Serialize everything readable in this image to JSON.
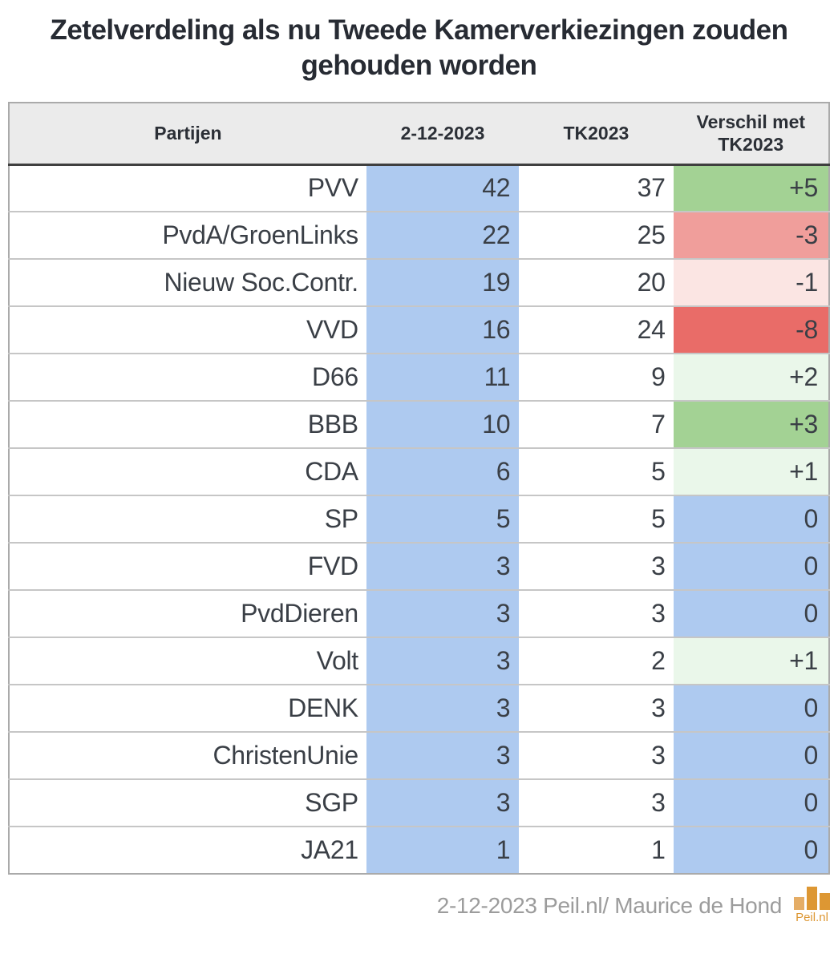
{
  "title": "Zetelverdeling als nu Tweede Kamerverkiezingen zouden gehouden worden",
  "table": {
    "headers": [
      "Partijen",
      "2-12-2023",
      "TK2023",
      "Verschil met TK2023"
    ],
    "rows": [
      {
        "party": "PVV",
        "current": "42",
        "tk2023": "37",
        "diff": "+5",
        "diff_bg": "#a3d294"
      },
      {
        "party": "PvdA/GroenLinks",
        "current": "22",
        "tk2023": "25",
        "diff": "-3",
        "diff_bg": "#f09e9b"
      },
      {
        "party": "Nieuw Soc.Contr.",
        "current": "19",
        "tk2023": "20",
        "diff": "-1",
        "diff_bg": "#fbe5e3"
      },
      {
        "party": "VVD",
        "current": "16",
        "tk2023": "24",
        "diff": "-8",
        "diff_bg": "#e96c68"
      },
      {
        "party": "D66",
        "current": "11",
        "tk2023": "9",
        "diff": "+2",
        "diff_bg": "#eaf7ea"
      },
      {
        "party": "BBB",
        "current": "10",
        "tk2023": "7",
        "diff": "+3",
        "diff_bg": "#a3d294"
      },
      {
        "party": "CDA",
        "current": "6",
        "tk2023": "5",
        "diff": "+1",
        "diff_bg": "#eaf7ea"
      },
      {
        "party": "SP",
        "current": "5",
        "tk2023": "5",
        "diff": "0",
        "diff_bg": "#aecaf0"
      },
      {
        "party": "FVD",
        "current": "3",
        "tk2023": "3",
        "diff": "0",
        "diff_bg": "#aecaf0"
      },
      {
        "party": "PvdDieren",
        "current": "3",
        "tk2023": "3",
        "diff": "0",
        "diff_bg": "#aecaf0"
      },
      {
        "party": "Volt",
        "current": "3",
        "tk2023": "2",
        "diff": "+1",
        "diff_bg": "#eaf7ea"
      },
      {
        "party": "DENK",
        "current": "3",
        "tk2023": "3",
        "diff": "0",
        "diff_bg": "#aecaf0"
      },
      {
        "party": "ChristenUnie",
        "current": "3",
        "tk2023": "3",
        "diff": "0",
        "diff_bg": "#aecaf0"
      },
      {
        "party": "SGP",
        "current": "3",
        "tk2023": "3",
        "diff": "0",
        "diff_bg": "#aecaf0"
      },
      {
        "party": "JA21",
        "current": "1",
        "tk2023": "1",
        "diff": "0",
        "diff_bg": "#aecaf0"
      }
    ]
  },
  "footer": {
    "credit": "2-12-2023 Peil.nl/ Maurice de Hond",
    "logo_text": "Peil.nl"
  },
  "colors": {
    "accent_blue": "#aecaf0",
    "green_strong": "#a3d294",
    "green_light": "#eaf7ea",
    "red_strong": "#e96c68",
    "red_medium": "#f09e9b",
    "red_light": "#fbe5e3",
    "header_bg": "#ebebeb",
    "logo_orange": "#dd9733",
    "bottom_bar": "#101010"
  },
  "chart_data": {
    "type": "table",
    "title": "Zetelverdeling als nu Tweede Kamerverkiezingen zouden gehouden worden",
    "columns": [
      "Partijen",
      "2-12-2023",
      "TK2023",
      "Verschil met TK2023"
    ],
    "rows": [
      [
        "PVV",
        42,
        37,
        "+5"
      ],
      [
        "PvdA/GroenLinks",
        22,
        25,
        "-3"
      ],
      [
        "Nieuw Soc.Contr.",
        19,
        20,
        "-1"
      ],
      [
        "VVD",
        16,
        24,
        "-8"
      ],
      [
        "D66",
        11,
        9,
        "+2"
      ],
      [
        "BBB",
        10,
        7,
        "+3"
      ],
      [
        "CDA",
        6,
        5,
        "+1"
      ],
      [
        "SP",
        5,
        5,
        "0"
      ],
      [
        "FVD",
        3,
        3,
        "0"
      ],
      [
        "PvdDieren",
        3,
        3,
        "0"
      ],
      [
        "Volt",
        3,
        2,
        "+1"
      ],
      [
        "DENK",
        3,
        3,
        "0"
      ],
      [
        "ChristenUnie",
        3,
        3,
        "0"
      ],
      [
        "SGP",
        3,
        3,
        "0"
      ],
      [
        "JA21",
        1,
        1,
        "0"
      ]
    ],
    "source": "2-12-2023 Peil.nl/ Maurice de Hond",
    "notes": "Seat counts; diff column shaded green for gains, red for losses, blue for no change"
  }
}
